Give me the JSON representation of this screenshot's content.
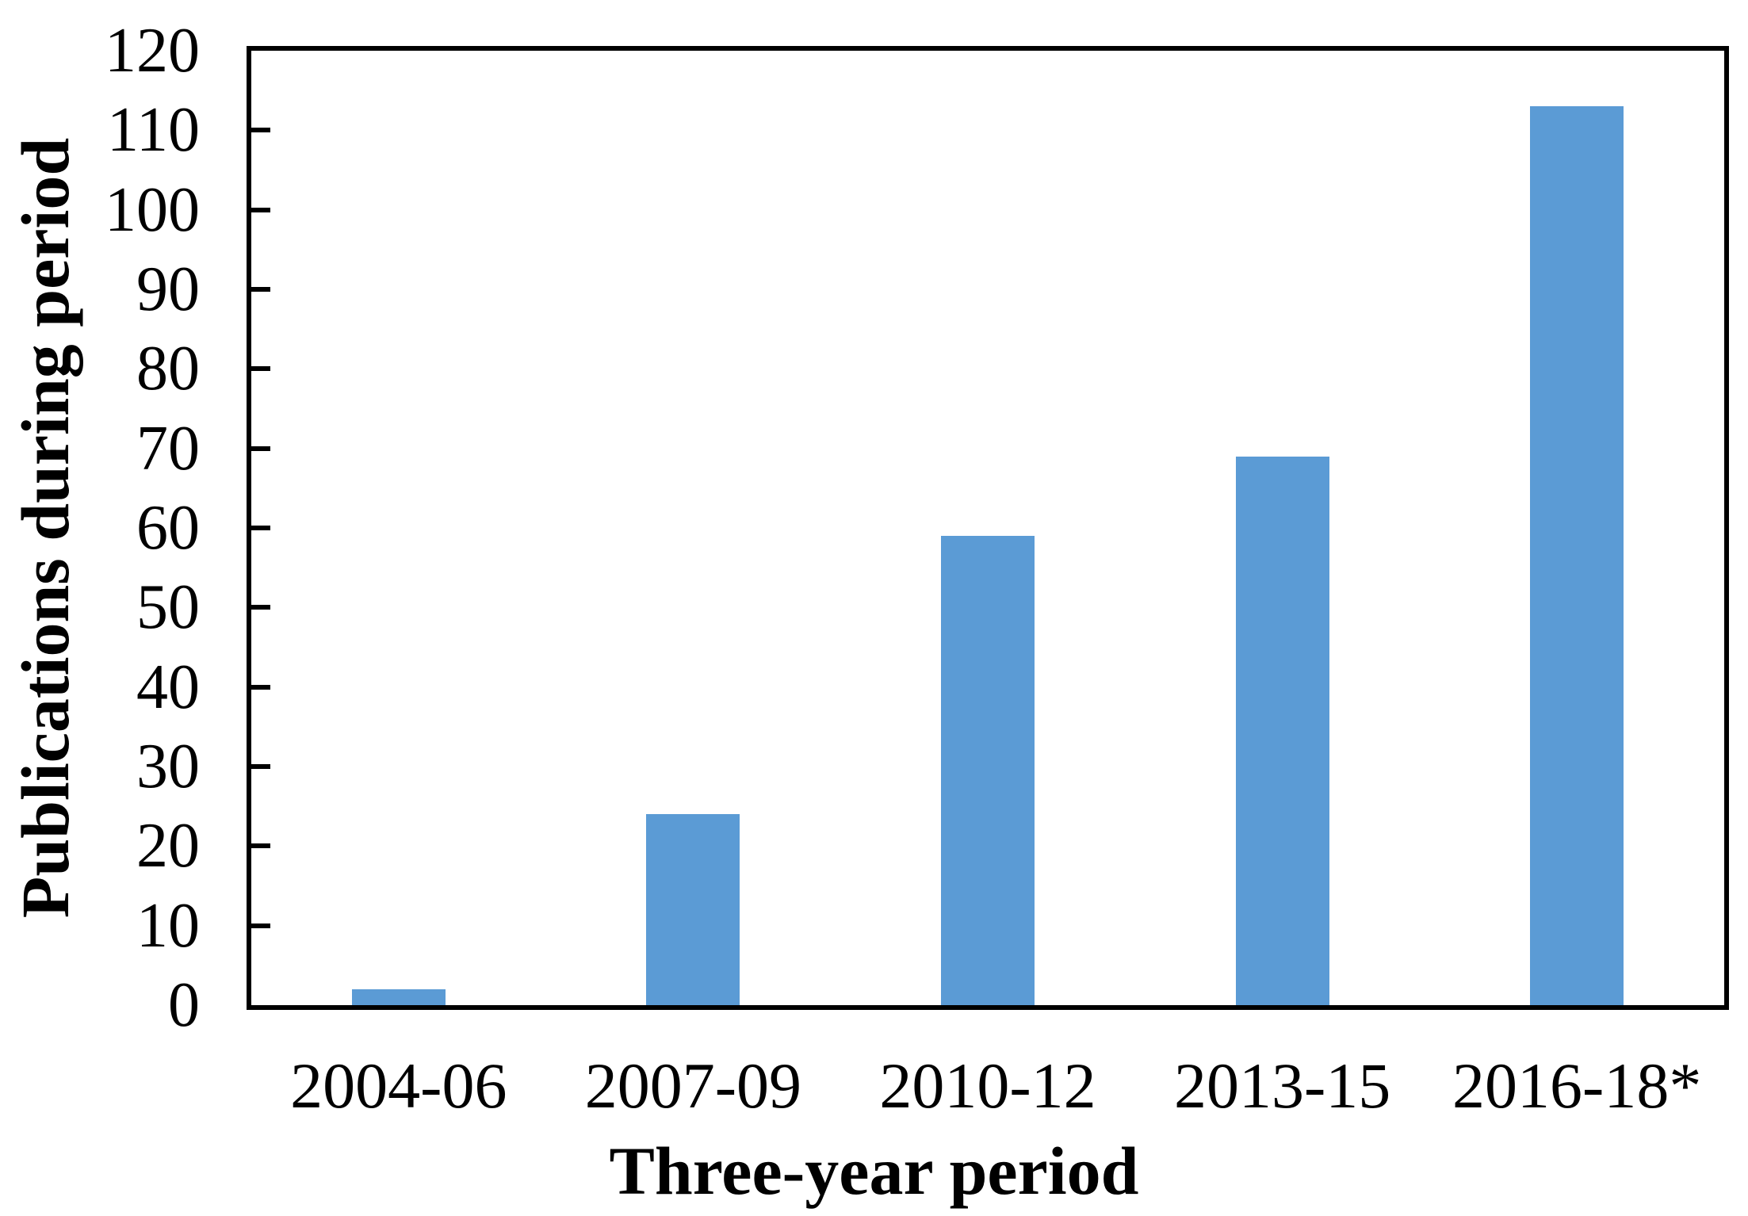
{
  "figure": {
    "background_color": "#ffffff",
    "frame_color": "#000000",
    "text_color": "#000000"
  },
  "chart_data": {
    "type": "bar",
    "title": "",
    "categories": [
      "2004-06",
      "2007-09",
      "2010-12",
      "2013-15",
      "2016-18*"
    ],
    "values": [
      2,
      24,
      59,
      69,
      113
    ],
    "xlabel": "Three-year period",
    "ylabel": "Publications during period",
    "ylim": [
      0,
      120
    ],
    "yticks": [
      0,
      10,
      20,
      30,
      40,
      50,
      60,
      70,
      80,
      90,
      100,
      110,
      120
    ],
    "bar_color": "#5B9BD5",
    "grid": false,
    "legend": false,
    "tick_direction": "in",
    "frame_on": true
  }
}
